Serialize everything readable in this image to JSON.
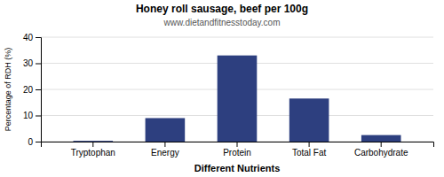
{
  "chart_data": {
    "type": "bar",
    "title": "Honey roll sausage, beef per 100g",
    "subtitle": "www.dietandfitnesstoday.com",
    "xlabel": "Different Nutrients",
    "ylabel": "Percentage of RDH (%)",
    "categories": [
      "Tryptophan",
      "Energy",
      "Protein",
      "Total Fat",
      "Carbohydrate"
    ],
    "values": [
      0.3,
      9,
      33,
      16.5,
      2.5
    ],
    "color": "#2d3f7f",
    "ylim": [
      0,
      40
    ],
    "yticks": [
      0,
      10,
      20,
      30,
      40
    ],
    "grid": true
  }
}
